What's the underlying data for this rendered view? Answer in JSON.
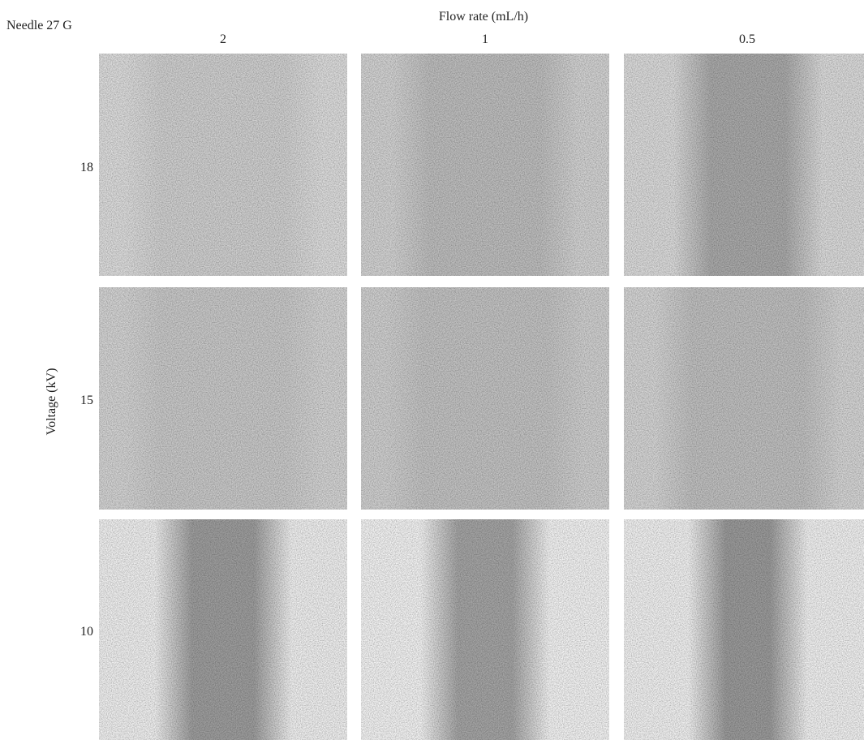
{
  "corner_label": "Needle 27 G",
  "column_axis": {
    "title": "Flow rate (mL/h)",
    "labels": [
      2,
      1,
      0.5
    ]
  },
  "row_axis": {
    "title": "Voltage (kV)",
    "labels": [
      18,
      15,
      10
    ]
  }
}
